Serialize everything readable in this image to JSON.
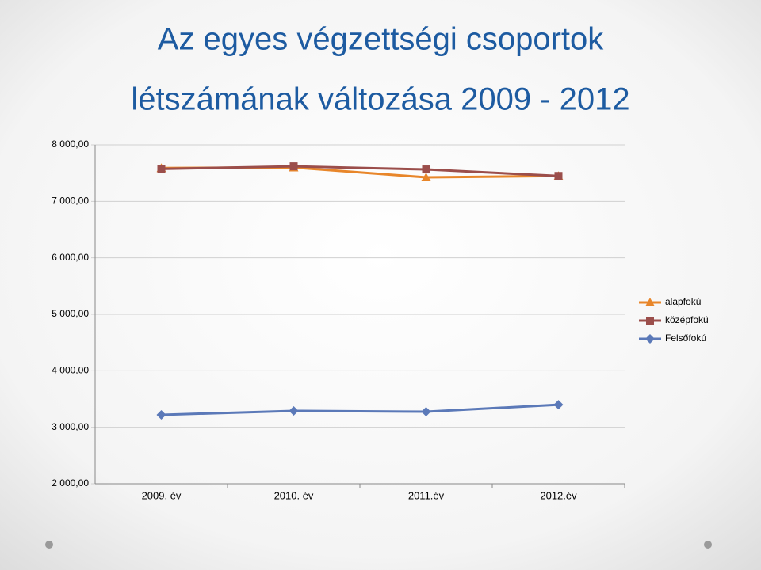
{
  "chart_data": {
    "type": "line",
    "title_lines": [
      "Az egyes végzettségi csoportok",
      "létszámának változása 2009 - 2012"
    ],
    "categories": [
      "2009. év",
      "2010. év",
      "2011.év",
      "2012.év"
    ],
    "series": [
      {
        "name": "alapfokú",
        "color": "#e8862a",
        "marker": "triangle",
        "values": [
          7590,
          7600,
          7425,
          7450
        ]
      },
      {
        "name": "középfokú",
        "color": "#9b4e4b",
        "marker": "square",
        "values": [
          7575,
          7620,
          7565,
          7450
        ]
      },
      {
        "name": "Felsőfokú",
        "color": "#5b79b8",
        "marker": "diamond",
        "values": [
          3220,
          3290,
          3275,
          3400
        ]
      }
    ],
    "ylim": [
      2000,
      8000
    ],
    "yticks": [
      {
        "value": 2000,
        "label": "2 000,00"
      },
      {
        "value": 3000,
        "label": "3 000,00"
      },
      {
        "value": 4000,
        "label": "4 000,00"
      },
      {
        "value": 5000,
        "label": "5 000,00"
      },
      {
        "value": 6000,
        "label": "6 000,00"
      },
      {
        "value": 7000,
        "label": "7 000,00"
      },
      {
        "value": 8000,
        "label": "8 000,00"
      }
    ],
    "grid": true,
    "legend": "right"
  }
}
